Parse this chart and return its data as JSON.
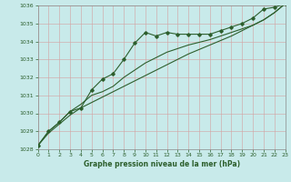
{
  "title": "Graphe pression niveau de la mer (hPa)",
  "bg_color": "#c8eaea",
  "grid_color": "#d4a0a0",
  "line_color": "#2d5f2d",
  "spine_color": "#8b8b8b",
  "x_min": 0,
  "x_max": 23,
  "y_min": 1028,
  "y_max": 1036,
  "x_ticks": [
    0,
    1,
    2,
    3,
    4,
    5,
    6,
    7,
    8,
    9,
    10,
    11,
    12,
    13,
    14,
    15,
    16,
    17,
    18,
    19,
    20,
    21,
    22,
    23
  ],
  "y_ticks": [
    1028,
    1029,
    1030,
    1031,
    1032,
    1033,
    1034,
    1035,
    1036
  ],
  "line1_x": [
    0,
    1,
    2,
    3,
    4,
    5,
    6,
    7,
    8,
    9,
    10,
    11,
    12,
    13,
    14,
    15,
    16,
    17,
    18,
    19,
    20,
    21,
    22,
    23
  ],
  "line1_y": [
    1028.2,
    1029.0,
    1029.5,
    1030.1,
    1030.3,
    1031.3,
    1031.9,
    1032.2,
    1033.0,
    1033.9,
    1034.5,
    1034.3,
    1034.5,
    1034.4,
    1034.4,
    1034.4,
    1034.4,
    1034.6,
    1034.8,
    1035.0,
    1035.3,
    1035.8,
    1035.9,
    1036.1
  ],
  "line2_x": [
    0,
    1,
    2,
    3,
    4,
    5,
    6,
    7,
    8,
    9,
    10,
    11,
    12,
    13,
    14,
    15,
    16,
    17,
    18,
    19,
    20,
    21,
    22,
    23
  ],
  "line2_y": [
    1028.2,
    1029.0,
    1029.5,
    1030.1,
    1030.5,
    1031.0,
    1031.2,
    1031.5,
    1032.0,
    1032.4,
    1032.8,
    1033.1,
    1033.4,
    1033.6,
    1033.8,
    1033.95,
    1034.1,
    1034.3,
    1034.5,
    1034.7,
    1034.9,
    1035.2,
    1035.6,
    1036.1
  ],
  "line3_x": [
    0,
    1,
    2,
    3,
    4,
    5,
    6,
    7,
    8,
    9,
    10,
    11,
    12,
    13,
    14,
    15,
    16,
    17,
    18,
    19,
    20,
    21,
    22,
    23
  ],
  "line3_y": [
    1028.2,
    1028.9,
    1029.4,
    1029.9,
    1030.3,
    1030.6,
    1030.9,
    1031.2,
    1031.5,
    1031.8,
    1032.1,
    1032.4,
    1032.7,
    1033.0,
    1033.3,
    1033.55,
    1033.8,
    1034.05,
    1034.3,
    1034.6,
    1034.9,
    1035.2,
    1035.6,
    1036.1
  ],
  "tick_fontsize": 4.5,
  "label_fontsize": 5.5,
  "lw": 0.8,
  "marker_size": 1.8
}
